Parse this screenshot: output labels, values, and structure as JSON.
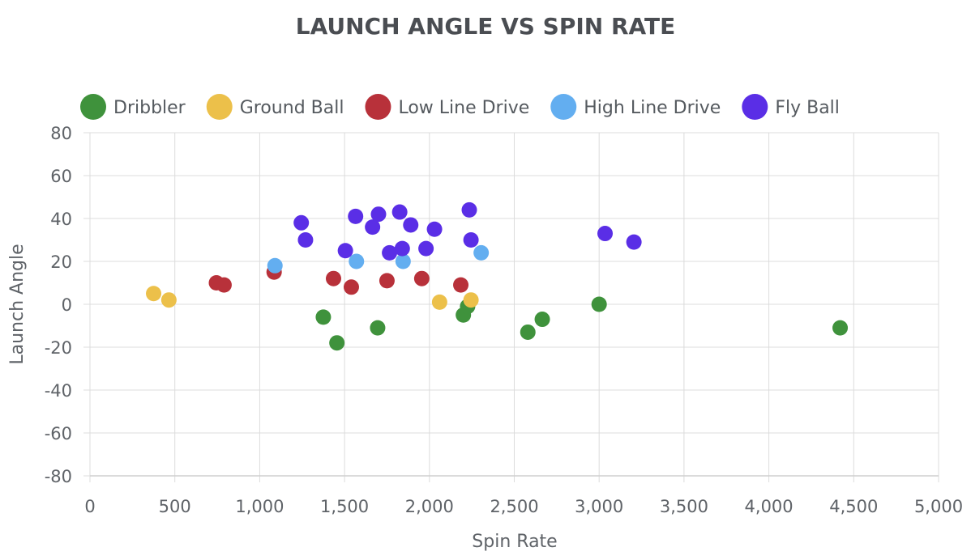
{
  "chart_data": {
    "type": "scatter",
    "title": "LAUNCH ANGLE VS SPIN RATE",
    "xlabel": "Spin Rate",
    "ylabel": "Launch Angle",
    "xlim": [
      0,
      5000
    ],
    "ylim": [
      -80,
      80
    ],
    "x_ticks": [
      "0",
      "500",
      "1,000",
      "1,500",
      "2,000",
      "2,500",
      "3,000",
      "3,500",
      "4,000",
      "4,500",
      "5,000"
    ],
    "y_ticks": [
      "80",
      "60",
      "40",
      "20",
      "0",
      "-20",
      "-40",
      "-60",
      "-80"
    ],
    "x_tick_values": [
      0,
      500,
      1000,
      1500,
      2000,
      2500,
      3000,
      3500,
      4000,
      4500,
      5000
    ],
    "y_tick_values": [
      80,
      60,
      40,
      20,
      0,
      -20,
      -40,
      -60,
      -80
    ],
    "grid": true,
    "legend_position": "top",
    "series": [
      {
        "name": "Dribbler",
        "color": "#3f923c",
        "points": [
          {
            "x": 1375,
            "y": -6
          },
          {
            "x": 1455,
            "y": -18
          },
          {
            "x": 1695,
            "y": -11
          },
          {
            "x": 2200,
            "y": -5
          },
          {
            "x": 2225,
            "y": -1
          },
          {
            "x": 2580,
            "y": -13
          },
          {
            "x": 2665,
            "y": -7
          },
          {
            "x": 3000,
            "y": 0
          },
          {
            "x": 4420,
            "y": -11
          }
        ]
      },
      {
        "name": "Ground Ball",
        "color": "#ecc04a",
        "points": [
          {
            "x": 375,
            "y": 5
          },
          {
            "x": 465,
            "y": 2
          },
          {
            "x": 2060,
            "y": 1
          },
          {
            "x": 2245,
            "y": 2
          }
        ]
      },
      {
        "name": "Low Line Drive",
        "color": "#b8313a",
        "points": [
          {
            "x": 745,
            "y": 10
          },
          {
            "x": 790,
            "y": 9
          },
          {
            "x": 1085,
            "y": 15
          },
          {
            "x": 1435,
            "y": 12
          },
          {
            "x": 1540,
            "y": 8
          },
          {
            "x": 1750,
            "y": 11
          },
          {
            "x": 1955,
            "y": 12
          },
          {
            "x": 2185,
            "y": 9
          }
        ]
      },
      {
        "name": "High Line Drive",
        "color": "#63aef0",
        "points": [
          {
            "x": 1090,
            "y": 18
          },
          {
            "x": 1570,
            "y": 20
          },
          {
            "x": 1845,
            "y": 20
          },
          {
            "x": 2305,
            "y": 24
          }
        ]
      },
      {
        "name": "Fly Ball",
        "color": "#5a2ee6",
        "points": [
          {
            "x": 1245,
            "y": 38
          },
          {
            "x": 1270,
            "y": 30
          },
          {
            "x": 1505,
            "y": 25
          },
          {
            "x": 1565,
            "y": 41
          },
          {
            "x": 1665,
            "y": 36
          },
          {
            "x": 1700,
            "y": 42
          },
          {
            "x": 1765,
            "y": 24
          },
          {
            "x": 1825,
            "y": 43
          },
          {
            "x": 1840,
            "y": 26
          },
          {
            "x": 1890,
            "y": 37
          },
          {
            "x": 1980,
            "y": 26
          },
          {
            "x": 2030,
            "y": 35
          },
          {
            "x": 2235,
            "y": 44
          },
          {
            "x": 2245,
            "y": 30
          },
          {
            "x": 3035,
            "y": 33
          },
          {
            "x": 3205,
            "y": 29
          }
        ]
      }
    ]
  }
}
